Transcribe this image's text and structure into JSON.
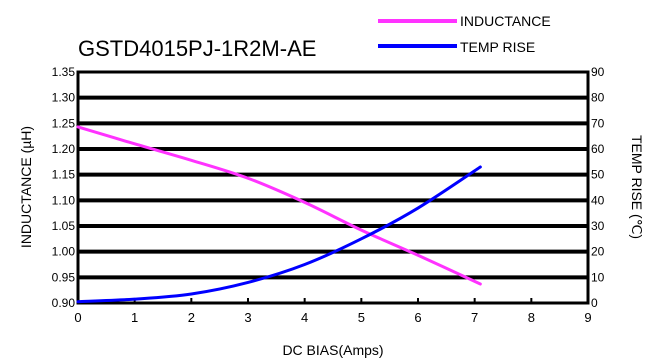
{
  "chart_data": {
    "type": "line",
    "title": "GSTD4015PJ-1R2M-AE",
    "xlabel": "DC BIAS(Amps)",
    "ylabel_left": "INDUCTANCE (µH)",
    "ylabel_right": "TEMP RISE (℃)",
    "xlim": [
      0,
      9
    ],
    "ylim_left": [
      0.9,
      1.35
    ],
    "ylim_right": [
      0,
      90
    ],
    "x_ticks": [
      "0",
      "1",
      "2",
      "3",
      "4",
      "5",
      "6",
      "7",
      "8",
      "9"
    ],
    "y_left_ticks": [
      "0.90",
      "0.95",
      "1.00",
      "1.05",
      "1.10",
      "1.15",
      "1.20",
      "1.25",
      "1.30",
      "1.35"
    ],
    "y_right_ticks": [
      "0",
      "10",
      "20",
      "30",
      "40",
      "50",
      "60",
      "70",
      "80",
      "90"
    ],
    "gridlines": [
      0.95,
      1.0,
      1.05,
      1.1,
      1.15,
      1.2,
      1.25,
      1.3
    ],
    "legend_position": "top-right",
    "series": [
      {
        "name": "INDUCTANCE",
        "axis": "left",
        "color": "#ff33ff",
        "points": [
          [
            0,
            1.243
          ],
          [
            1,
            1.21
          ],
          [
            2,
            1.178
          ],
          [
            3,
            1.143
          ],
          [
            4,
            1.096
          ],
          [
            5,
            1.042
          ],
          [
            6,
            0.993
          ],
          [
            7.1,
            0.937
          ]
        ]
      },
      {
        "name": "TEMP RISE",
        "axis": "right",
        "color": "#0000ff",
        "points": [
          [
            0,
            0.5
          ],
          [
            1,
            1.5
          ],
          [
            2,
            3.5
          ],
          [
            3,
            8
          ],
          [
            4,
            15
          ],
          [
            5,
            25
          ],
          [
            6,
            37
          ],
          [
            7.1,
            53
          ]
        ]
      }
    ]
  }
}
